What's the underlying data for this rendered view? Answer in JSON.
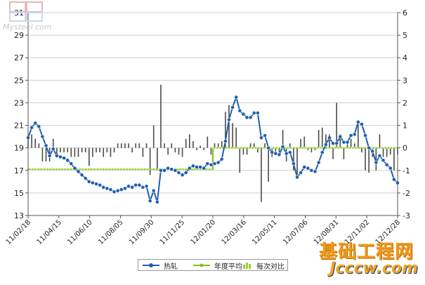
{
  "chart_data": {
    "type": "line",
    "left_axis": {
      "ticks": [
        "31",
        "29",
        "27",
        "25",
        "23",
        "21",
        "19",
        "17",
        "15",
        "13"
      ],
      "ylim": [
        13,
        31
      ]
    },
    "right_axis": {
      "ticks": [
        "6",
        "5",
        "4",
        "3",
        "2",
        "1",
        "0",
        "-1",
        "-2",
        "-3"
      ],
      "ylim": [
        -3,
        6
      ]
    },
    "x_ticks": [
      "11/02/18",
      "11/04/15",
      "11/06/10",
      "11/08/05",
      "11/09/30",
      "11/11/25",
      "12/01/20",
      "12/03/16",
      "12/05/11",
      "12/07/06",
      "12/08/31",
      "12/11/02",
      "12/12/28"
    ],
    "series": [
      {
        "name": "热轧",
        "axis": "left",
        "color": "#1f5fb0",
        "values": [
          19.9,
          20.8,
          21.2,
          20.9,
          20.0,
          19.2,
          18.3,
          18.9,
          18.3,
          18.2,
          18.1,
          17.9,
          17.6,
          17.2,
          16.9,
          16.6,
          16.3,
          16.0,
          15.9,
          15.8,
          15.7,
          15.5,
          15.4,
          15.3,
          15.1,
          15.2,
          15.3,
          15.4,
          15.6,
          15.5,
          15.7,
          15.7,
          15.5,
          15.6,
          14.3,
          15.2,
          14.2,
          17.0,
          17.0,
          17.2,
          17.1,
          17.0,
          16.8,
          16.6,
          16.8,
          17.2,
          17.4,
          17.3,
          17.3,
          17.2,
          17.6,
          17.5,
          17.6,
          17.7,
          18.0,
          19.6,
          21.5,
          22.6,
          23.5,
          22.3,
          22.0,
          21.7,
          21.7,
          22.1,
          22.1,
          19.9,
          20.1,
          19.0,
          18.6,
          18.5,
          18.4,
          19.1,
          18.5,
          18.6,
          17.6,
          16.4,
          16.8,
          17.3,
          17.2,
          17.0,
          16.9,
          17.7,
          18.6,
          19.3,
          19.9,
          19.4,
          19.4,
          20.0,
          19.5,
          19.5,
          20.1,
          20.2,
          21.3,
          21.1,
          20.1,
          19.0,
          18.7,
          17.7,
          18.3,
          17.9,
          17.5,
          17.2,
          16.2,
          15.9
        ]
      },
      {
        "name": "年度平均",
        "axis": "left",
        "color": "#7cc21a",
        "segments": [
          {
            "from": "11/02/18",
            "to": "12/01/20",
            "value": 17.1
          },
          {
            "from": "12/01/20",
            "to": "12/12/28",
            "value": 19.0
          }
        ]
      },
      {
        "name": "每次对比",
        "axis": "right",
        "type": "bar",
        "values": [
          0.4,
          0.6,
          0.4,
          0.2,
          -0.6,
          -0.6,
          -0.6,
          0.4,
          -0.4,
          -0.2,
          -0.2,
          -0.2,
          -0.4,
          -0.4,
          -0.4,
          -0.2,
          -0.2,
          -0.8,
          -0.4,
          -0.2,
          -0.2,
          -0.4,
          -0.2,
          -0.4,
          -0.2,
          0.2,
          0.2,
          0.2,
          0.2,
          -0.2,
          0.2,
          0.2,
          -0.4,
          0.2,
          -1.2,
          1.0,
          -1.0,
          2.8,
          0.2,
          -0.3,
          0.2,
          -0.2,
          -0.3,
          -0.4,
          0.4,
          0.6,
          0.3,
          -0.1,
          0.1,
          -0.1,
          0.5,
          -0.3,
          0.2,
          0.2,
          0.3,
          1.6,
          1.9,
          1.1,
          0.9,
          -1.1,
          -0.3,
          -0.3,
          0.2,
          0.2,
          -0.2,
          -2.4,
          0.2,
          -1.5,
          -0.4,
          -0.2,
          -0.2,
          0.8,
          -0.6,
          0.2,
          -1.0,
          -1.2,
          0.4,
          0.5,
          -0.1,
          -0.2,
          -0.1,
          0.8,
          0.9,
          0.6,
          0.6,
          -0.5,
          2.0,
          0.6,
          -0.5,
          0.2,
          0.4,
          0.2,
          1.1,
          -0.2,
          -1.0,
          -1.1,
          -0.4,
          -1.0,
          0.6,
          -0.4,
          -0.4,
          -0.3,
          -1.0,
          -0.3
        ]
      }
    ],
    "grid": {
      "horizontal": true,
      "vertical": false
    },
    "legend": {
      "placement": "bottom",
      "items": [
        "热轧",
        "年度平均",
        "每次对比"
      ]
    }
  },
  "colors": {
    "line": "#1f5fb0",
    "avg": "#7cc21a",
    "bar": "#4a4a4a",
    "grid": "#d0d0d0",
    "axis": "#555555"
  },
  "watermark_top": "Mysteel.com",
  "logo": {
    "line1": "基础工程网",
    "line2": "Jcccw.com"
  }
}
